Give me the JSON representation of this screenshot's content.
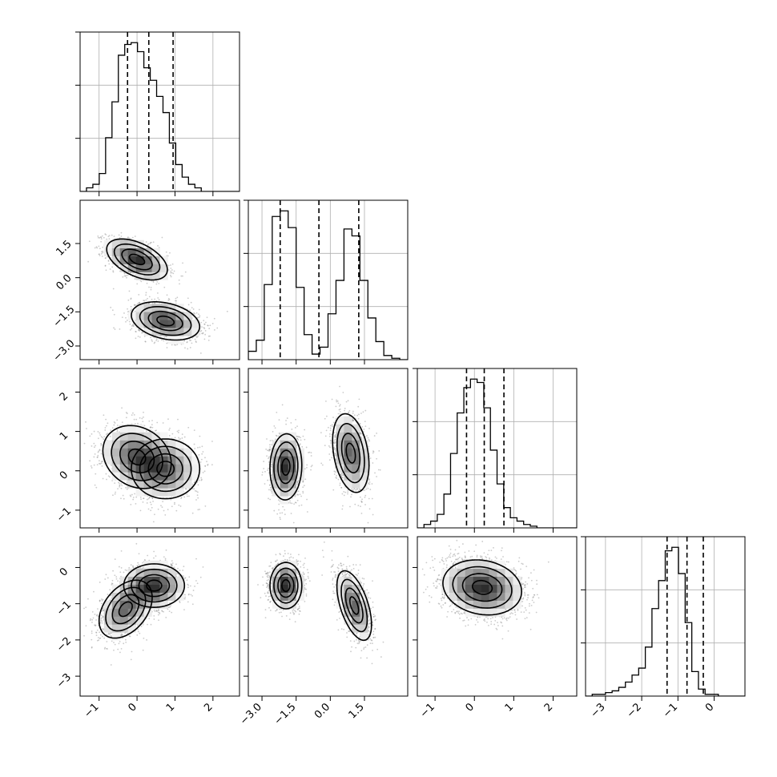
{
  "chart_data": {
    "type": "corner",
    "title": "",
    "parameters": [
      "",
      "",
      "",
      ""
    ],
    "ranges": [
      [
        -1.5,
        2.7
      ],
      [
        -3.6,
        3.4
      ],
      [
        -1.45,
        2.6
      ],
      [
        -3.55,
        0.85
      ]
    ],
    "ticks": [
      {
        "values": [
          -1,
          0,
          1,
          2
        ],
        "labels": [
          "−1",
          "0",
          "1",
          "2"
        ]
      },
      {
        "values": [
          -3.0,
          -1.5,
          0.0,
          1.5
        ],
        "labels": [
          "−3.0",
          "−1.5",
          "0.0",
          "1.5"
        ]
      },
      {
        "values": [
          -1,
          0,
          1,
          2
        ],
        "labels": [
          "−1",
          "0",
          "1",
          "2"
        ]
      },
      {
        "values": [
          -3,
          -2,
          -1,
          0
        ],
        "labels": [
          "−3",
          "−2",
          "−1",
          "0"
        ]
      }
    ],
    "diagonal_histograms": [
      {
        "parameter": 0,
        "bin_edges_start": -1.5,
        "bin_width": 0.168,
        "counts": [
          0,
          2,
          4,
          10,
          30,
          50,
          76,
          82,
          83,
          78,
          69,
          62,
          53,
          44,
          27,
          15,
          8,
          4,
          2,
          0,
          0,
          0,
          0,
          0,
          0
        ],
        "quantiles": [
          -0.25,
          0.31,
          0.95
        ]
      },
      {
        "parameter": 1,
        "bin_edges_start": -3.6,
        "bin_width": 0.35,
        "counts": [
          6,
          14,
          54,
          103,
          107,
          95,
          52,
          18,
          4,
          9,
          33,
          57,
          94,
          89,
          57,
          30,
          13,
          3,
          1,
          0
        ],
        "quantiles": [
          -2.2,
          -0.5,
          1.25
        ]
      },
      {
        "parameter": 2,
        "bin_edges_start": -1.45,
        "bin_width": 0.1688,
        "counts": [
          0,
          2,
          4,
          8,
          20,
          44,
          68,
          83,
          88,
          86,
          71,
          46,
          26,
          12,
          6,
          4,
          2,
          1,
          0,
          0,
          0,
          0,
          0,
          0
        ],
        "quantiles": [
          -0.2,
          0.25,
          0.75
        ]
      },
      {
        "parameter": 3,
        "bin_edges_start": -3.55,
        "bin_width": 0.1833,
        "counts": [
          0,
          1,
          1,
          2,
          3,
          5,
          8,
          12,
          16,
          28,
          50,
          66,
          83,
          85,
          70,
          42,
          14,
          4,
          1,
          1,
          0,
          0,
          0,
          0
        ],
        "quantiles": [
          -1.3,
          -0.75,
          -0.3
        ]
      }
    ],
    "joint_distributions": [
      {
        "x_param": 0,
        "y_param": 1,
        "modes": [
          {
            "center": [
              0.0,
              0.8
            ],
            "sigma": [
              0.4,
              0.45
            ],
            "rho": -0.5,
            "weight": 0.5
          },
          {
            "center": [
              0.75,
              -1.9
            ],
            "sigma": [
              0.45,
              0.42
            ],
            "rho": -0.3,
            "weight": 0.5
          }
        ]
      },
      {
        "x_param": 0,
        "y_param": 2,
        "modes": [
          {
            "center": [
              0.0,
              0.35
            ],
            "sigma": [
              0.45,
              0.4
            ],
            "rho": -0.2,
            "weight": 0.55
          },
          {
            "center": [
              0.75,
              0.05
            ],
            "sigma": [
              0.45,
              0.38
            ],
            "rho": 0.0,
            "weight": 0.45
          }
        ]
      },
      {
        "x_param": 1,
        "y_param": 2,
        "modes": [
          {
            "center": [
              -1.95,
              0.1
            ],
            "sigma": [
              0.35,
              0.42
            ],
            "rho": 0.05,
            "weight": 0.5
          },
          {
            "center": [
              0.9,
              0.45
            ],
            "sigma": [
              0.4,
              0.5
            ],
            "rho": -0.3,
            "weight": 0.5
          }
        ]
      },
      {
        "x_param": 0,
        "y_param": 3,
        "modes": [
          {
            "center": [
              0.45,
              -0.5
            ],
            "sigma": [
              0.4,
              0.3
            ],
            "rho": 0.0,
            "weight": 0.55
          },
          {
            "center": [
              -0.3,
              -1.15
            ],
            "sigma": [
              0.35,
              0.4
            ],
            "rho": 0.4,
            "weight": 0.45
          }
        ]
      },
      {
        "x_param": 1,
        "y_param": 3,
        "modes": [
          {
            "center": [
              -1.95,
              -0.5
            ],
            "sigma": [
              0.35,
              0.32
            ],
            "rho": 0.0,
            "weight": 0.5
          },
          {
            "center": [
              1.05,
              -1.05
            ],
            "sigma": [
              0.38,
              0.48
            ],
            "rho": -0.55,
            "weight": 0.5
          }
        ]
      },
      {
        "x_param": 2,
        "y_param": 3,
        "modes": [
          {
            "center": [
              0.2,
              -0.55
            ],
            "sigma": [
              0.5,
              0.38
            ],
            "rho": -0.15,
            "weight": 1.0
          }
        ]
      }
    ],
    "contour_levels_sigma": [
      0.5,
      1.0,
      1.5,
      2.0
    ],
    "grid": true,
    "legend": "none"
  }
}
